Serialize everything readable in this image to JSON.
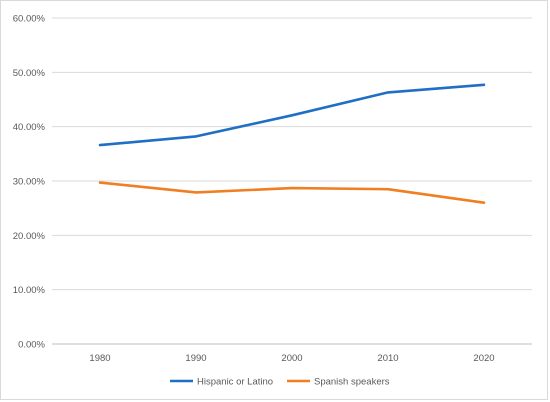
{
  "chart_data": {
    "type": "line",
    "categories": [
      "1980",
      "1990",
      "2000",
      "2010",
      "2020"
    ],
    "ylim": [
      0,
      60
    ],
    "yticks": [
      0,
      10,
      20,
      30,
      40,
      50,
      60
    ],
    "ytick_labels": [
      "0.00%",
      "10.00%",
      "20.00%",
      "30.00%",
      "40.00%",
      "50.00%",
      "60.00%"
    ],
    "grid": true,
    "legend_position": "bottom",
    "series": [
      {
        "name": "Hispanic or Latino",
        "color": "#1f6fc5",
        "values": [
          36.6,
          38.2,
          42.1,
          46.3,
          47.7
        ]
      },
      {
        "name": "Spanish speakers",
        "color": "#f07f22",
        "values": [
          29.7,
          27.9,
          28.7,
          28.5,
          26.0
        ]
      }
    ]
  }
}
